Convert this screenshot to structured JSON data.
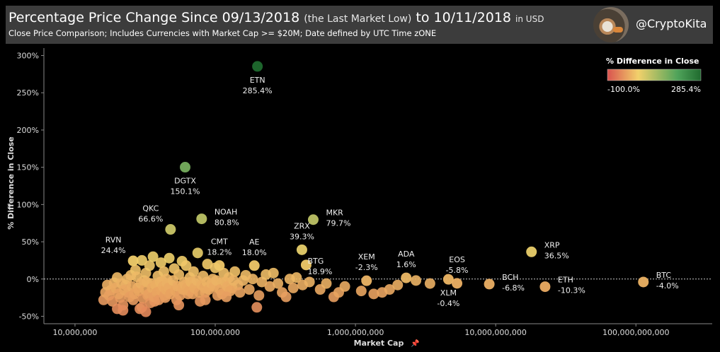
{
  "header": {
    "title_main": "Percentage Price Change Since 09/13/2018",
    "title_light": "(the Last Market Low)",
    "title_to": "to 10/11/2018",
    "title_unit": "in USD",
    "subtitle": "Close Price Comparison; Includes Currencies with Market Cap >= $20M; Date defined by UTC Time zONE",
    "handle": "@CryptoKita"
  },
  "chart_data": {
    "type": "scatter",
    "xlabel": "Market Cap",
    "ylabel": "% Difference in Close",
    "x_scale": "log",
    "xlim": [
      6000000,
      350000000000
    ],
    "ylim": [
      -60,
      310
    ],
    "x_ticks": [
      {
        "value": 10000000,
        "label": "10,000,000"
      },
      {
        "value": 100000000,
        "label": "100,000,000"
      },
      {
        "value": 1000000000,
        "label": "1,000,000,000"
      },
      {
        "value": 10000000000,
        "label": "10,000,000,000"
      },
      {
        "value": 100000000000,
        "label": "100,000,000,000"
      }
    ],
    "y_ticks": [
      {
        "value": 300,
        "label": "300%"
      },
      {
        "value": 250,
        "label": "250%"
      },
      {
        "value": 200,
        "label": "200%"
      },
      {
        "value": 150,
        "label": "150%"
      },
      {
        "value": 100,
        "label": "100%"
      },
      {
        "value": 50,
        "label": "50%"
      },
      {
        "value": 0,
        "label": "0%"
      },
      {
        "value": -50,
        "label": "-50%"
      }
    ],
    "legend": {
      "title": "% Difference in Close",
      "min_label": "-100.0%",
      "max_label": "285.4%",
      "min": -100.0,
      "max": 285.4,
      "colors": [
        "#d9534f",
        "#f2d16b",
        "#4fa35a",
        "#1f6a2e"
      ],
      "placement": "top-right"
    },
    "labeled_points": [
      {
        "name": "ETN",
        "value_label": "285.4%",
        "x": 200000000,
        "y": 285.4,
        "label_pos": "below"
      },
      {
        "name": "DGTX",
        "value_label": "150.1%",
        "x": 61000000,
        "y": 150.1,
        "label_pos": "below"
      },
      {
        "name": "NOAH",
        "value_label": "80.8%",
        "x": 80000000,
        "y": 80.8,
        "label_pos": "right"
      },
      {
        "name": "MKR",
        "value_label": "79.7%",
        "x": 500000000,
        "y": 79.7,
        "label_pos": "right"
      },
      {
        "name": "QKC",
        "value_label": "66.6%",
        "x": 48000000,
        "y": 66.6,
        "label_pos": "left"
      },
      {
        "name": "ZRX",
        "value_label": "39.3%",
        "x": 415000000,
        "y": 39.3,
        "label_pos": "above"
      },
      {
        "name": "XRP",
        "value_label": "36.5%",
        "x": 18000000000,
        "y": 36.5,
        "label_pos": "right"
      },
      {
        "name": "RVN",
        "value_label": "24.4%",
        "x": 26000000,
        "y": 24.4,
        "label_pos": "left"
      },
      {
        "name": "BTG",
        "value_label": "18.9%",
        "x": 445000000,
        "y": 18.9,
        "label_pos": "below-right"
      },
      {
        "name": "CMT",
        "value_label": "18.2%",
        "x": 107000000,
        "y": 18.2,
        "label_pos": "above"
      },
      {
        "name": "AE",
        "value_label": "18.0%",
        "x": 190000000,
        "y": 18.0,
        "label_pos": "above"
      },
      {
        "name": "ADA",
        "value_label": "1.6%",
        "x": 2300000000,
        "y": 1.6,
        "label_pos": "above"
      },
      {
        "name": "XLM",
        "value_label": "-0.4%",
        "x": 4600000000,
        "y": -0.4,
        "label_pos": "below"
      },
      {
        "name": "XEM",
        "value_label": "-2.3%",
        "x": 1200000000,
        "y": -2.3,
        "label_pos": "above"
      },
      {
        "name": "BTC",
        "value_label": "-4.0%",
        "x": 113000000000,
        "y": -4.0,
        "label_pos": "right"
      },
      {
        "name": "EOS",
        "value_label": "-5.8%",
        "x": 5300000000,
        "y": -5.8,
        "label_pos": "above"
      },
      {
        "name": "BCH",
        "value_label": "-6.8%",
        "x": 9000000000,
        "y": -6.8,
        "label_pos": "right"
      },
      {
        "name": "ETH",
        "value_label": "-10.3%",
        "x": 22500000000,
        "y": -10.3,
        "label_pos": "right"
      }
    ],
    "other_points": [
      [
        18000000,
        -15
      ],
      [
        19000000,
        -5
      ],
      [
        20000000,
        2
      ],
      [
        21000000,
        -25
      ],
      [
        22000000,
        -35
      ],
      [
        23000000,
        -8
      ],
      [
        24000000,
        -18
      ],
      [
        25000000,
        5
      ],
      [
        26000000,
        -28
      ],
      [
        27000000,
        12
      ],
      [
        28000000,
        -12
      ],
      [
        29000000,
        -40
      ],
      [
        30000000,
        25
      ],
      [
        31000000,
        -2
      ],
      [
        32000000,
        8
      ],
      [
        33000000,
        -22
      ],
      [
        34000000,
        18
      ],
      [
        35000000,
        -6
      ],
      [
        36000000,
        30
      ],
      [
        37000000,
        -30
      ],
      [
        38000000,
        -15
      ],
      [
        39000000,
        4
      ],
      [
        40000000,
        -10
      ],
      [
        41000000,
        22
      ],
      [
        42000000,
        -3
      ],
      [
        43000000,
        10
      ],
      [
        44000000,
        -25
      ],
      [
        45000000,
        0
      ],
      [
        46000000,
        -18
      ],
      [
        47000000,
        28
      ],
      [
        49000000,
        -8
      ],
      [
        51000000,
        14
      ],
      [
        53000000,
        -28
      ],
      [
        55000000,
        6
      ],
      [
        57000000,
        -12
      ],
      [
        58000000,
        24
      ],
      [
        60000000,
        -4
      ],
      [
        62000000,
        18
      ],
      [
        64000000,
        -20
      ],
      [
        66000000,
        2
      ],
      [
        68000000,
        -14
      ],
      [
        70000000,
        10
      ],
      [
        72000000,
        -6
      ],
      [
        75000000,
        35
      ],
      [
        78000000,
        -30
      ],
      [
        82000000,
        4
      ],
      [
        85000000,
        -18
      ],
      [
        88000000,
        20
      ],
      [
        92000000,
        -10
      ],
      [
        96000000,
        0
      ],
      [
        100000000,
        15
      ],
      [
        104000000,
        -22
      ],
      [
        110000000,
        -5
      ],
      [
        115000000,
        8
      ],
      [
        120000000,
        -16
      ],
      [
        125000000,
        2
      ],
      [
        132000000,
        -12
      ],
      [
        138000000,
        10
      ],
      [
        145000000,
        -8
      ],
      [
        150000000,
        -18
      ],
      [
        158000000,
        -2
      ],
      [
        165000000,
        5
      ],
      [
        175000000,
        -14
      ],
      [
        185000000,
        0
      ],
      [
        198000000,
        -38
      ],
      [
        205000000,
        -22
      ],
      [
        215000000,
        -4
      ],
      [
        230000000,
        6
      ],
      [
        245000000,
        -10
      ],
      [
        260000000,
        8
      ],
      [
        280000000,
        -6
      ],
      [
        300000000,
        -18
      ],
      [
        320000000,
        -24
      ],
      [
        340000000,
        0
      ],
      [
        360000000,
        -12
      ],
      [
        380000000,
        2
      ],
      [
        420000000,
        -8
      ],
      [
        470000000,
        -4
      ],
      [
        560000000,
        -14
      ],
      [
        620000000,
        -6
      ],
      [
        700000000,
        -24
      ],
      [
        760000000,
        -18
      ],
      [
        840000000,
        -10
      ],
      [
        1100000000,
        -16
      ],
      [
        1350000000,
        -20
      ],
      [
        1550000000,
        -18
      ],
      [
        1750000000,
        -14
      ],
      [
        2000000000,
        -8
      ],
      [
        2700000000,
        -2
      ],
      [
        3400000000,
        -6
      ],
      [
        16000000,
        -28
      ],
      [
        16500000,
        -18
      ],
      [
        17000000,
        -8
      ],
      [
        17500000,
        -22
      ],
      [
        18500000,
        -30
      ],
      [
        19500000,
        -12
      ],
      [
        20500000,
        -20
      ],
      [
        21500000,
        -6
      ],
      [
        22500000,
        -15
      ],
      [
        23500000,
        0
      ],
      [
        24500000,
        -24
      ],
      [
        25500000,
        -10
      ],
      [
        26500000,
        -20
      ],
      [
        27500000,
        3
      ],
      [
        28500000,
        -16
      ],
      [
        29500000,
        -6
      ],
      [
        30500000,
        -26
      ],
      [
        31500000,
        -14
      ],
      [
        32500000,
        -4
      ],
      [
        33500000,
        -20
      ],
      [
        34500000,
        -32
      ],
      [
        35500000,
        -12
      ],
      [
        36500000,
        -24
      ],
      [
        37500000,
        -8
      ],
      [
        38500000,
        -18
      ],
      [
        39500000,
        -28
      ],
      [
        40500000,
        -4
      ],
      [
        41500000,
        -16
      ],
      [
        42500000,
        -10
      ],
      [
        43500000,
        -22
      ],
      [
        44500000,
        -14
      ],
      [
        45500000,
        -6
      ],
      [
        46500000,
        -12
      ],
      [
        48000000,
        -20
      ],
      [
        50000000,
        -2
      ],
      [
        52000000,
        -16
      ],
      [
        54000000,
        -10
      ],
      [
        56000000,
        -22
      ],
      [
        59000000,
        -14
      ],
      [
        61000000,
        -8
      ],
      [
        63000000,
        -12
      ],
      [
        65000000,
        -16
      ],
      [
        67000000,
        -4
      ],
      [
        69000000,
        -20
      ],
      [
        71000000,
        -12
      ],
      [
        74000000,
        -2
      ],
      [
        77000000,
        -18
      ],
      [
        80000000,
        -8
      ],
      [
        84000000,
        -12
      ],
      [
        87000000,
        -4
      ],
      [
        90000000,
        -14
      ],
      [
        94000000,
        -6
      ],
      [
        98000000,
        -10
      ],
      [
        102000000,
        -2
      ],
      [
        108000000,
        -14
      ],
      [
        112000000,
        -20
      ],
      [
        118000000,
        -4
      ],
      [
        122000000,
        -10
      ],
      [
        128000000,
        -16
      ],
      [
        135000000,
        -2
      ],
      [
        20000000,
        -40
      ],
      [
        22000000,
        -42
      ],
      [
        30000000,
        -38
      ],
      [
        32000000,
        -44
      ],
      [
        55000000,
        -35
      ],
      [
        85000000,
        -28
      ],
      [
        120000000,
        -24
      ]
    ]
  }
}
